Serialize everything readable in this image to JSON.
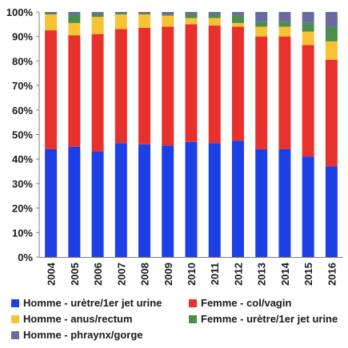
{
  "chart_data": {
    "type": "bar",
    "stacked": true,
    "orientation": "vertical",
    "categories": [
      "2004",
      "2005",
      "2006",
      "2007",
      "2008",
      "2009",
      "2010",
      "2011",
      "2012",
      "2013",
      "2014",
      "2015",
      "2016"
    ],
    "series": [
      {
        "name": "Homme - urètre/1er jet urine",
        "color": "#1c3fe6",
        "values": [
          44,
          45,
          43,
          46.5,
          46,
          45.5,
          47,
          46.5,
          47.5,
          44,
          44,
          41,
          37
        ]
      },
      {
        "name": "Femme - col/vagin",
        "color": "#e8312c",
        "values": [
          48.5,
          45.5,
          48,
          46.5,
          47.5,
          48.5,
          48,
          48,
          46.5,
          46,
          46,
          45.5,
          43.5
        ]
      },
      {
        "name": "Homme - anus/rectum",
        "color": "#f7c234",
        "values": [
          6.5,
          5,
          7,
          6,
          5.5,
          4.5,
          2.5,
          3,
          1.5,
          4,
          4,
          5.5,
          7.5
        ]
      },
      {
        "name": "Femme - urètre/1er jet urine",
        "color": "#4a8d4e",
        "values": [
          0.5,
          3.5,
          1,
          0.5,
          0.5,
          0.5,
          1.5,
          1.5,
          3,
          2,
          2,
          3.5,
          6
        ]
      },
      {
        "name": "Homme - phraynx/gorge",
        "color": "#6a6aa0",
        "values": [
          0.5,
          1,
          1,
          0.5,
          0.5,
          1,
          1,
          1,
          1.5,
          4,
          4,
          4.5,
          6
        ]
      }
    ],
    "yticks": [
      "0%",
      "10%",
      "20%",
      "30%",
      "40%",
      "50%",
      "60%",
      "70%",
      "80%",
      "90%",
      "100%"
    ],
    "ylim": [
      0,
      100
    ],
    "grid": false,
    "legend_position": "bottom"
  }
}
